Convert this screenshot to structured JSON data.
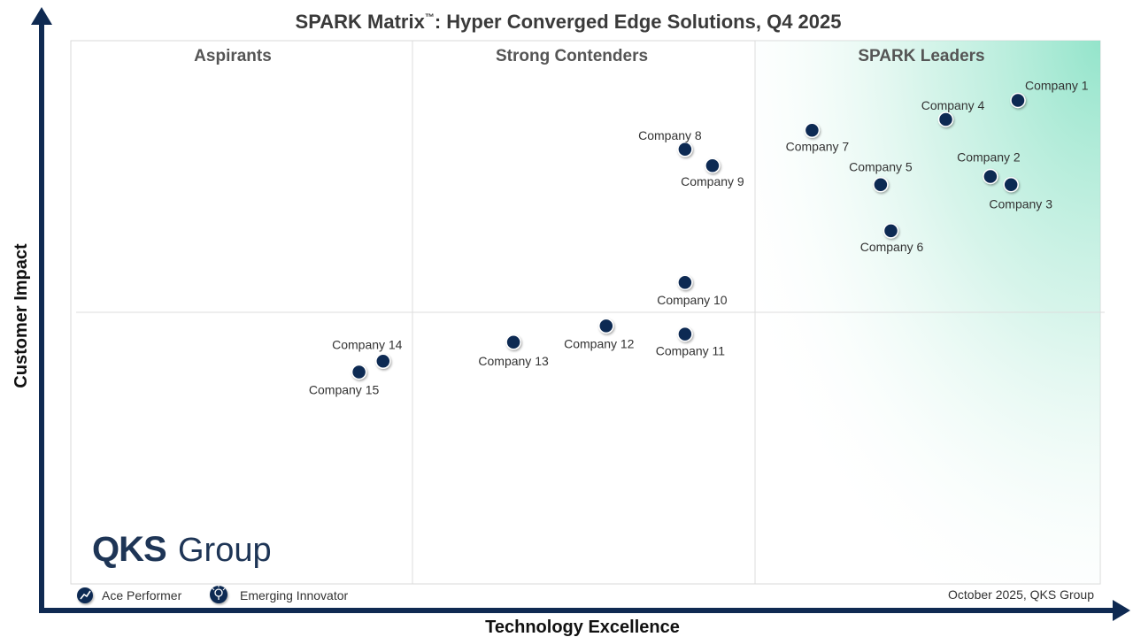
{
  "chart_data": {
    "type": "scatter",
    "title": "SPARK Matrix",
    "title_tm": "™",
    "title_rest": ": Hyper Converged Edge Solutions, Q4 2025",
    "xlabel": "Technology Excellence",
    "ylabel": "Customer Impact",
    "xlim": [
      0,
      3
    ],
    "ylim": [
      0,
      2
    ],
    "grid": true,
    "quadrants": [
      "Aspirants",
      "Strong Contenders",
      "SPARK Leaders"
    ],
    "points": [
      {
        "name": "Company 1",
        "x": 2.76,
        "y": 1.78
      },
      {
        "name": "Company 2",
        "x": 2.68,
        "y": 1.5
      },
      {
        "name": "Company 3",
        "x": 2.74,
        "y": 1.47
      },
      {
        "name": "Company 4",
        "x": 2.55,
        "y": 1.71
      },
      {
        "name": "Company  5",
        "x": 2.36,
        "y": 1.47
      },
      {
        "name": "Company 6",
        "x": 2.39,
        "y": 1.3
      },
      {
        "name": "Company 7",
        "x": 2.16,
        "y": 1.67
      },
      {
        "name": "Company 8",
        "x": 1.79,
        "y": 1.6
      },
      {
        "name": "Company 9",
        "x": 1.87,
        "y": 1.54
      },
      {
        "name": "Company 10",
        "x": 1.79,
        "y": 1.11
      },
      {
        "name": "Company 11",
        "x": 1.79,
        "y": 0.92
      },
      {
        "name": "Company 12",
        "x": 1.56,
        "y": 0.95
      },
      {
        "name": "Company 13",
        "x": 1.29,
        "y": 0.89
      },
      {
        "name": "Company 14",
        "x": 0.91,
        "y": 0.82
      },
      {
        "name": "Company 15",
        "x": 0.84,
        "y": 0.78
      }
    ]
  },
  "legend": {
    "ace_performer": "Ace Performer",
    "emerging_innovator": "Emerging Innovator"
  },
  "footer": {
    "source": "October 2025, QKS Group"
  },
  "logo": {
    "brand": "QKS",
    "word": "Group"
  },
  "colors": {
    "marker": "#0f2a52",
    "axis": "#0f2a52",
    "leaders_gradient": "#8ee3c8"
  }
}
